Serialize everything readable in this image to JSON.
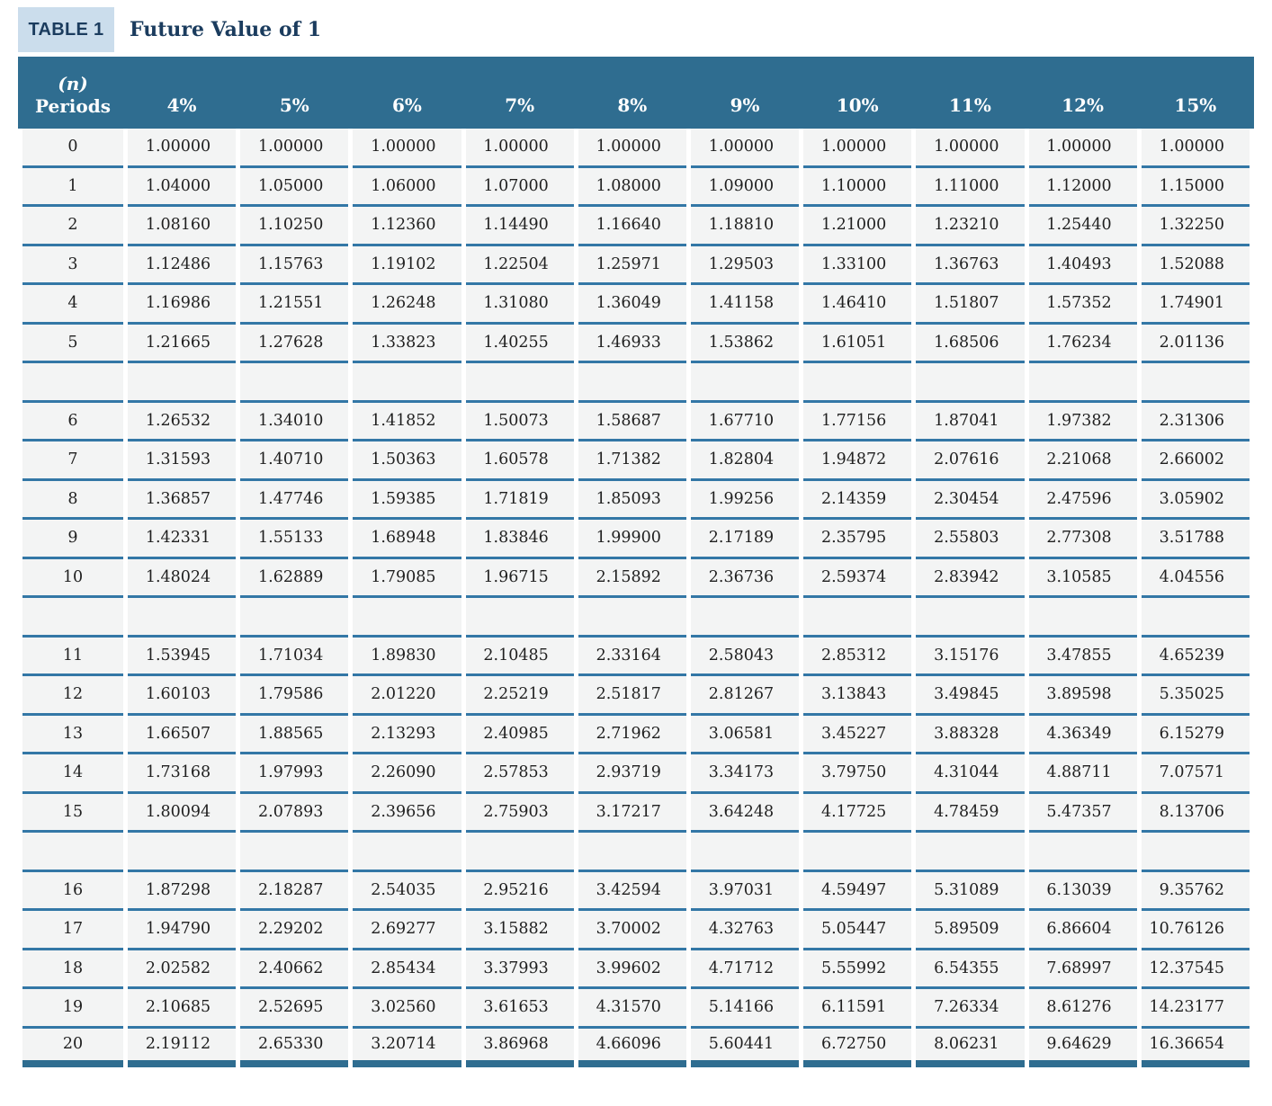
{
  "caption": {
    "badge": "TABLE 1",
    "title": "Future Value of 1"
  },
  "header": {
    "periods_line1": "(n)",
    "periods_line2": "Periods",
    "rates": [
      "4%",
      "5%",
      "6%",
      "7%",
      "8%",
      "9%",
      "10%",
      "11%",
      "12%",
      "15%"
    ]
  },
  "rows": [
    {
      "period": "0",
      "values": [
        "1.00000",
        "1.00000",
        "1.00000",
        "1.00000",
        "1.00000",
        "1.00000",
        "1.00000",
        "1.00000",
        "1.00000",
        "1.00000"
      ]
    },
    {
      "period": "1",
      "values": [
        "1.04000",
        "1.05000",
        "1.06000",
        "1.07000",
        "1.08000",
        "1.09000",
        "1.10000",
        "1.11000",
        "1.12000",
        "1.15000"
      ]
    },
    {
      "period": "2",
      "values": [
        "1.08160",
        "1.10250",
        "1.12360",
        "1.14490",
        "1.16640",
        "1.18810",
        "1.21000",
        "1.23210",
        "1.25440",
        "1.32250"
      ]
    },
    {
      "period": "3",
      "values": [
        "1.12486",
        "1.15763",
        "1.19102",
        "1.22504",
        "1.25971",
        "1.29503",
        "1.33100",
        "1.36763",
        "1.40493",
        "1.52088"
      ]
    },
    {
      "period": "4",
      "values": [
        "1.16986",
        "1.21551",
        "1.26248",
        "1.31080",
        "1.36049",
        "1.41158",
        "1.46410",
        "1.51807",
        "1.57352",
        "1.74901"
      ]
    },
    {
      "period": "5",
      "values": [
        "1.21665",
        "1.27628",
        "1.33823",
        "1.40255",
        "1.46933",
        "1.53862",
        "1.61051",
        "1.68506",
        "1.76234",
        "2.01136"
      ]
    },
    {
      "spacer": true
    },
    {
      "period": "6",
      "values": [
        "1.26532",
        "1.34010",
        "1.41852",
        "1.50073",
        "1.58687",
        "1.67710",
        "1.77156",
        "1.87041",
        "1.97382",
        "2.31306"
      ]
    },
    {
      "period": "7",
      "values": [
        "1.31593",
        "1.40710",
        "1.50363",
        "1.60578",
        "1.71382",
        "1.82804",
        "1.94872",
        "2.07616",
        "2.21068",
        "2.66002"
      ]
    },
    {
      "period": "8",
      "values": [
        "1.36857",
        "1.47746",
        "1.59385",
        "1.71819",
        "1.85093",
        "1.99256",
        "2.14359",
        "2.30454",
        "2.47596",
        "3.05902"
      ]
    },
    {
      "period": "9",
      "values": [
        "1.42331",
        "1.55133",
        "1.68948",
        "1.83846",
        "1.99900",
        "2.17189",
        "2.35795",
        "2.55803",
        "2.77308",
        "3.51788"
      ]
    },
    {
      "period": "10",
      "values": [
        "1.48024",
        "1.62889",
        "1.79085",
        "1.96715",
        "2.15892",
        "2.36736",
        "2.59374",
        "2.83942",
        "3.10585",
        "4.04556"
      ]
    },
    {
      "spacer": true
    },
    {
      "period": "11",
      "values": [
        "1.53945",
        "1.71034",
        "1.89830",
        "2.10485",
        "2.33164",
        "2.58043",
        "2.85312",
        "3.15176",
        "3.47855",
        "4.65239"
      ]
    },
    {
      "period": "12",
      "values": [
        "1.60103",
        "1.79586",
        "2.01220",
        "2.25219",
        "2.51817",
        "2.81267",
        "3.13843",
        "3.49845",
        "3.89598",
        "5.35025"
      ]
    },
    {
      "period": "13",
      "values": [
        "1.66507",
        "1.88565",
        "2.13293",
        "2.40985",
        "2.71962",
        "3.06581",
        "3.45227",
        "3.88328",
        "4.36349",
        "6.15279"
      ]
    },
    {
      "period": "14",
      "values": [
        "1.73168",
        "1.97993",
        "2.26090",
        "2.57853",
        "2.93719",
        "3.34173",
        "3.79750",
        "4.31044",
        "4.88711",
        "7.07571"
      ]
    },
    {
      "period": "15",
      "values": [
        "1.80094",
        "2.07893",
        "2.39656",
        "2.75903",
        "3.17217",
        "3.64248",
        "4.17725",
        "4.78459",
        "5.47357",
        "8.13706"
      ]
    },
    {
      "spacer": true
    },
    {
      "period": "16",
      "values": [
        "1.87298",
        "2.18287",
        "2.54035",
        "2.95216",
        "3.42594",
        "3.97031",
        "4.59497",
        "5.31089",
        "6.13039",
        "9.35762"
      ]
    },
    {
      "period": "17",
      "values": [
        "1.94790",
        "2.29202",
        "2.69277",
        "3.15882",
        "3.70002",
        "4.32763",
        "5.05447",
        "5.89509",
        "6.86604",
        "10.76126"
      ]
    },
    {
      "period": "18",
      "values": [
        "2.02582",
        "2.40662",
        "2.85434",
        "3.37993",
        "3.99602",
        "4.71712",
        "5.55992",
        "6.54355",
        "7.68997",
        "12.37545"
      ]
    },
    {
      "period": "19",
      "values": [
        "2.10685",
        "2.52695",
        "3.02560",
        "3.61653",
        "4.31570",
        "5.14166",
        "6.11591",
        "7.26334",
        "8.61276",
        "14.23177"
      ]
    },
    {
      "period": "20",
      "values": [
        "2.19112",
        "2.65330",
        "3.20714",
        "3.86968",
        "4.66096",
        "5.60441",
        "6.72750",
        "8.06231",
        "9.64629",
        "16.36654"
      ]
    }
  ],
  "colors": {
    "header_bg": "#2f6d90",
    "rule": "#3377a6",
    "thick_rule": "#2f6d90",
    "badge_bg": "#cbddec",
    "navy": "#1b3c5e",
    "row_bg": "#f3f4f4",
    "text": "#1f1f1f"
  }
}
